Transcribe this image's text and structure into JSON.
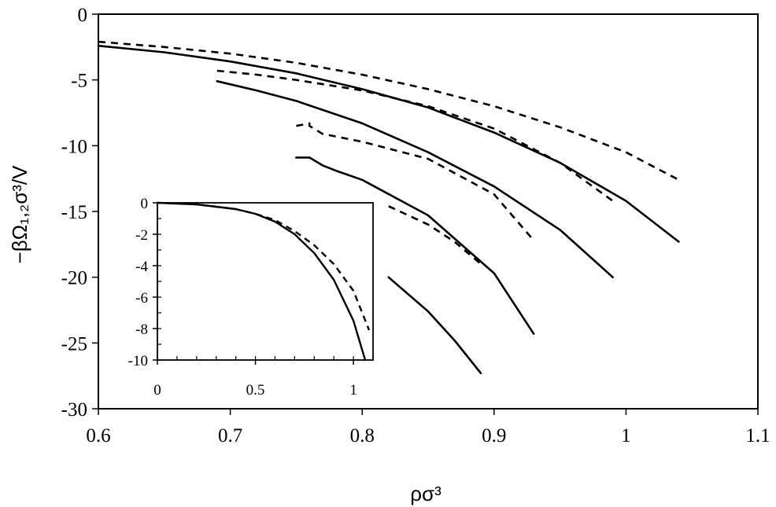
{
  "chart_data": [
    {
      "type": "line",
      "title": "",
      "xlabel": "ρσ³",
      "ylabel": "−βΩ₁,₂σ³/V",
      "xlim": [
        0.6,
        1.1
      ],
      "ylim": [
        -30,
        0
      ],
      "xticks": [
        "0.6",
        "0.7",
        "0.8",
        "0.9",
        "1",
        "1.1"
      ],
      "yticks": [
        "0",
        "-5",
        "-10",
        "-15",
        "-20",
        "-25",
        "-30"
      ],
      "grid": false,
      "legend": "none",
      "series": [
        {
          "style": "dashed",
          "x": [
            0.6,
            0.65,
            0.7,
            0.75,
            0.8,
            0.85,
            0.9,
            0.95,
            1.0,
            1.04
          ],
          "y": [
            -2.1,
            -2.5,
            -3.0,
            -3.7,
            -4.6,
            -5.7,
            -7.0,
            -8.6,
            -10.5,
            -12.6
          ]
        },
        {
          "style": "solid",
          "x": [
            0.6,
            0.65,
            0.7,
            0.75,
            0.8,
            0.85,
            0.9,
            0.95,
            1.0,
            1.04
          ],
          "y": [
            -2.4,
            -2.9,
            -3.6,
            -4.5,
            -5.7,
            -7.1,
            -9.0,
            -11.3,
            -14.2,
            -17.3
          ]
        },
        {
          "style": "dashed",
          "x": [
            0.69,
            0.72,
            0.75,
            0.8,
            0.85,
            0.9,
            0.95,
            0.99
          ],
          "y": [
            -4.3,
            -4.6,
            -5.0,
            -5.8,
            -7.0,
            -8.7,
            -11.3,
            -14.2
          ]
        },
        {
          "style": "solid",
          "x": [
            0.69,
            0.72,
            0.75,
            0.8,
            0.85,
            0.9,
            0.95,
            0.99
          ],
          "y": [
            -5.1,
            -5.8,
            -6.6,
            -8.3,
            -10.5,
            -13.1,
            -16.4,
            -20.0
          ]
        },
        {
          "style": "dashed",
          "x": [
            0.75,
            0.76,
            0.76,
            0.77,
            0.8,
            0.85,
            0.9,
            0.93
          ],
          "y": [
            -8.5,
            -8.3,
            -8.5,
            -9.1,
            -9.7,
            -11.0,
            -13.7,
            -17.2
          ]
        },
        {
          "style": "solid",
          "x": [
            0.75,
            0.76,
            0.77,
            0.78,
            0.8,
            0.85,
            0.9,
            0.93
          ],
          "y": [
            -10.9,
            -10.9,
            -11.5,
            -11.9,
            -12.6,
            -15.3,
            -19.7,
            -24.3
          ]
        },
        {
          "style": "dashed",
          "x": [
            0.82,
            0.85,
            0.87,
            0.89
          ],
          "y": [
            -14.6,
            -16.0,
            -17.3,
            -19.0
          ]
        },
        {
          "style": "solid",
          "x": [
            0.82,
            0.85,
            0.87,
            0.89
          ],
          "y": [
            -20.0,
            -22.6,
            -24.8,
            -27.3
          ]
        }
      ]
    },
    {
      "type": "line",
      "title": "",
      "xlabel": "",
      "ylabel": "",
      "xlim": [
        0,
        1.1
      ],
      "ylim": [
        -10,
        0
      ],
      "xticks": [
        "0",
        "0.5",
        "1"
      ],
      "yticks": [
        "0",
        "-2",
        "-4",
        "-6",
        "-8",
        "-10"
      ],
      "grid": false,
      "legend": "none",
      "series": [
        {
          "style": "solid",
          "x": [
            0,
            0.2,
            0.4,
            0.5,
            0.6,
            0.7,
            0.8,
            0.9,
            1.0,
            1.06
          ],
          "y": [
            0,
            -0.1,
            -0.4,
            -0.7,
            -1.2,
            -2.0,
            -3.2,
            -4.9,
            -7.5,
            -10.0
          ]
        },
        {
          "style": "dashed",
          "x": [
            0,
            0.2,
            0.4,
            0.5,
            0.6,
            0.7,
            0.8,
            0.9,
            1.0,
            1.08
          ],
          "y": [
            0,
            -0.1,
            -0.4,
            -0.7,
            -1.1,
            -1.8,
            -2.7,
            -3.9,
            -5.6,
            -8.1
          ]
        }
      ]
    }
  ]
}
